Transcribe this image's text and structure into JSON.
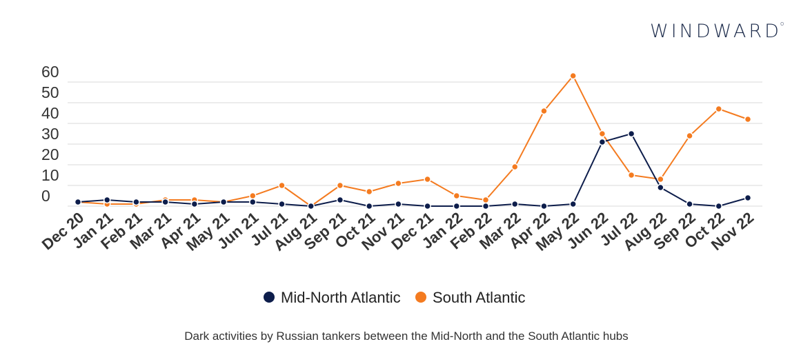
{
  "brand": {
    "logo_text": "WINDWARD",
    "registered_mark": "o"
  },
  "caption": "Dark activities by Russian tankers between the Mid-North and the South Atlantic hubs",
  "colors": {
    "mid_north": "#0d1d4b",
    "south": "#f47b20",
    "grid": "#d9d9d9",
    "text": "#333333"
  },
  "chart_data": {
    "type": "line",
    "title": "",
    "xlabel": "",
    "ylabel": "",
    "categories": [
      "Dec 20",
      "Jan 21",
      "Feb 21",
      "Mar 21",
      "Apr 21",
      "May 21",
      "Jun 21",
      "Jul 21",
      "Aug 21",
      "Sep 21",
      "Oct 21",
      "Nov 21",
      "Dec 21",
      "Jan 22",
      "Feb 22",
      "Mar 22",
      "Apr 22",
      "May 22",
      "Jun 22",
      "Jul 22",
      "Aug 22",
      "Sep 22",
      "Oct 22",
      "Nov 22"
    ],
    "y_ticks": [
      "0",
      "10",
      "20",
      "30",
      "40",
      "50",
      "60"
    ],
    "ylim": [
      0,
      60
    ],
    "grid": true,
    "legend_position": "bottom",
    "series": [
      {
        "name": "Mid-North Atlantic",
        "color": "#0d1d4b",
        "values": [
          2,
          3,
          2,
          2,
          1,
          2,
          2,
          1,
          0,
          3,
          0,
          1,
          0,
          0,
          0,
          1,
          0,
          1,
          31,
          35,
          9,
          1,
          0,
          4
        ]
      },
      {
        "name": "South Atlantic",
        "color": "#f47b20",
        "values": [
          2,
          1,
          1,
          3,
          3,
          2,
          5,
          10,
          0,
          10,
          7,
          11,
          13,
          5,
          3,
          19,
          46,
          63,
          35,
          15,
          13,
          34,
          47,
          42
        ]
      }
    ]
  }
}
